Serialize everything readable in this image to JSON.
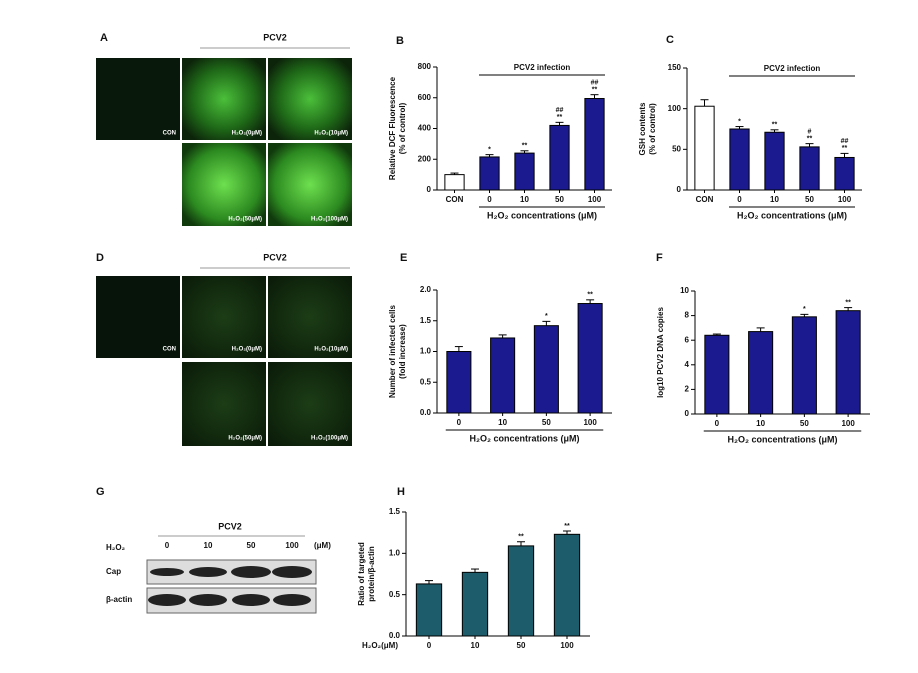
{
  "panels": {
    "A": {
      "letter": "A",
      "group": "PCV2",
      "captions": [
        "CON",
        "H₂O₂(0μM)",
        "H₂O₂(10μM)",
        "H₂O₂(50μM)",
        "H₂O₂(100μM)"
      ]
    },
    "D": {
      "letter": "D",
      "group": "PCV2",
      "captions": [
        "CON",
        "H₂O₂(0μM)",
        "H₂O₂(10μM)",
        "H₂O₂(50μM)",
        "H₂O₂(100μM)"
      ]
    },
    "G": {
      "letter": "G",
      "group": "PCV2",
      "treatment": "H₂O₂",
      "doses": [
        "0",
        "10",
        "50",
        "100"
      ],
      "unit": "(μM)",
      "rows": [
        "Cap",
        "β-actin"
      ]
    }
  },
  "chart_data": [
    {
      "type": "bar",
      "panel": "B",
      "ylabel": [
        "Relative DCF Fluorescence",
        "(% of control)"
      ],
      "xlabel": "H₂O₂ concentrations (μM)",
      "bracket_label": "PCV2 infection",
      "categories": [
        "CON",
        "0",
        "10",
        "50",
        "100"
      ],
      "values": [
        100,
        215,
        240,
        420,
        595
      ],
      "errors": [
        10,
        15,
        15,
        20,
        25
      ],
      "annotations": [
        null,
        [
          "*"
        ],
        [
          "**"
        ],
        [
          "##",
          "**"
        ],
        [
          "##",
          "**"
        ]
      ],
      "colors": [
        "#ffffff",
        "#1b1b8f",
        "#1b1b8f",
        "#1b1b8f",
        "#1b1b8f"
      ],
      "ylim": [
        0,
        800
      ],
      "yticks": [
        0,
        200,
        400,
        600,
        800
      ]
    },
    {
      "type": "bar",
      "panel": "C",
      "ylabel": [
        "GSH contents",
        "(% of control)"
      ],
      "xlabel": "H₂O₂ concentrations (μM)",
      "bracket_label": "PCV2 infection",
      "categories": [
        "CON",
        "0",
        "10",
        "50",
        "100"
      ],
      "values": [
        103,
        75,
        71,
        53,
        40
      ],
      "errors": [
        8,
        3,
        3,
        4,
        5
      ],
      "annotations": [
        null,
        [
          "*"
        ],
        [
          "**"
        ],
        [
          "#",
          "**"
        ],
        [
          "##",
          "**"
        ]
      ],
      "colors": [
        "#ffffff",
        "#1b1b8f",
        "#1b1b8f",
        "#1b1b8f",
        "#1b1b8f"
      ],
      "ylim": [
        0,
        150
      ],
      "yticks": [
        0,
        50,
        100,
        150
      ]
    },
    {
      "type": "bar",
      "panel": "E",
      "ylabel": [
        "Number of infected cells",
        "(fold increase)"
      ],
      "xlabel": "H₂O₂ concentrations (μM)",
      "categories": [
        "0",
        "10",
        "50",
        "100"
      ],
      "values": [
        1.0,
        1.22,
        1.42,
        1.78
      ],
      "errors": [
        0.08,
        0.05,
        0.07,
        0.06
      ],
      "annotations": [
        null,
        null,
        [
          "*"
        ],
        [
          "**"
        ]
      ],
      "colors": [
        "#1b1b8f",
        "#1b1b8f",
        "#1b1b8f",
        "#1b1b8f"
      ],
      "ylim": [
        0,
        2
      ],
      "yticks": [
        {
          "value": 0,
          "label": "0.0"
        },
        0.5,
        {
          "value": 1,
          "label": "1.0"
        },
        1.5,
        {
          "value": 2,
          "label": "2.0"
        }
      ]
    },
    {
      "type": "bar",
      "panel": "F",
      "ylabel": [
        "log10 PCV2 DNA copies"
      ],
      "xlabel": "H₂O₂ concentrations (μM)",
      "categories": [
        "0",
        "10",
        "50",
        "100"
      ],
      "values": [
        6.4,
        6.7,
        7.9,
        8.4
      ],
      "errors": [
        0.1,
        0.3,
        0.2,
        0.25
      ],
      "annotations": [
        null,
        null,
        [
          "*"
        ],
        [
          "**"
        ]
      ],
      "colors": [
        "#1b1b8f",
        "#1b1b8f",
        "#1b1b8f",
        "#1b1b8f"
      ],
      "ylim": [
        0,
        10
      ],
      "yticks": [
        0,
        2,
        4,
        6,
        8,
        10
      ]
    },
    {
      "type": "bar",
      "panel": "H",
      "ylabel": [
        "Ratio of targeted",
        "protein/β-actin"
      ],
      "xlabel": "H₂O₂(μM)",
      "categories": [
        "0",
        "10",
        "50",
        "100"
      ],
      "values": [
        0.63,
        0.77,
        1.09,
        1.23
      ],
      "errors": [
        0.04,
        0.04,
        0.05,
        0.04
      ],
      "annotations": [
        null,
        null,
        [
          "**"
        ],
        [
          "**"
        ]
      ],
      "colors": [
        "#1d5c6b",
        "#1d5c6b",
        "#1d5c6b",
        "#1d5c6b"
      ],
      "ylim": [
        0,
        1.5
      ],
      "yticks": [
        {
          "value": 0,
          "label": "0.0"
        },
        0.5,
        {
          "value": 1,
          "label": "1.0"
        },
        1.5
      ]
    }
  ]
}
